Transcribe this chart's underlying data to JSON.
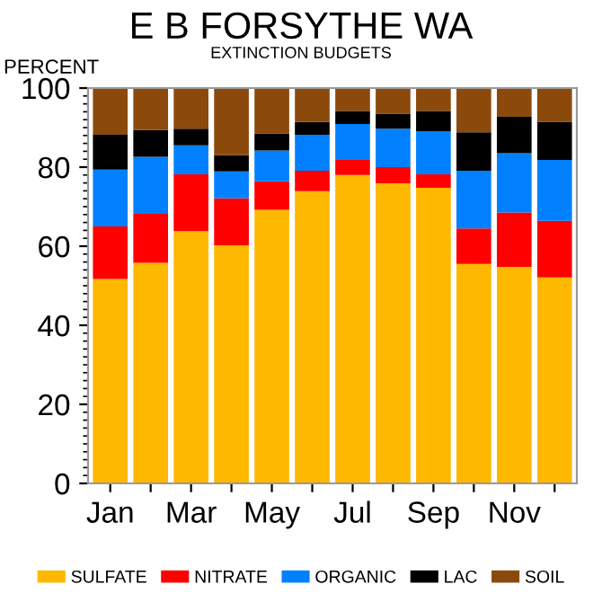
{
  "chart_data": {
    "type": "bar",
    "stacked": true,
    "title": "E B FORSYTHE WA",
    "subtitle": "EXTINCTION BUDGETS",
    "ylabel": "PERCENT",
    "categories": [
      "Jan",
      null,
      "Mar",
      null,
      "May",
      null,
      "Jul",
      null,
      "Sep",
      null,
      "Nov",
      null
    ],
    "series": [
      {
        "name": "SULFATE",
        "color": "#ffb800",
        "values": [
          51.7,
          55.8,
          63.8,
          60.2,
          69.2,
          73.9,
          78.0,
          75.9,
          74.8,
          55.5,
          54.8,
          52.1
        ]
      },
      {
        "name": "NITRATE",
        "color": "#ff0000",
        "values": [
          13.3,
          12.4,
          14.4,
          11.9,
          7.2,
          5.2,
          3.8,
          4.1,
          3.4,
          9.0,
          13.7,
          14.3
        ]
      },
      {
        "name": "ORGANIC",
        "color": "#0080ff",
        "values": [
          14.4,
          14.4,
          7.3,
          6.8,
          7.8,
          9.1,
          9.1,
          9.7,
          10.9,
          14.6,
          15.0,
          15.4
        ]
      },
      {
        "name": "LAC",
        "color": "#000000",
        "values": [
          8.8,
          6.8,
          4.2,
          4.1,
          4.3,
          3.2,
          3.3,
          3.8,
          5.1,
          9.7,
          9.2,
          9.7
        ]
      },
      {
        "name": "SOIL",
        "color": "#8b4a0c",
        "values": [
          11.8,
          10.6,
          10.3,
          17.0,
          11.5,
          8.6,
          5.8,
          6.5,
          5.8,
          11.2,
          7.3,
          8.5
        ]
      }
    ],
    "ylim": [
      0,
      100
    ],
    "yticks": [
      0,
      20,
      40,
      60,
      80,
      100
    ],
    "grid": false,
    "legend": "bottom"
  }
}
